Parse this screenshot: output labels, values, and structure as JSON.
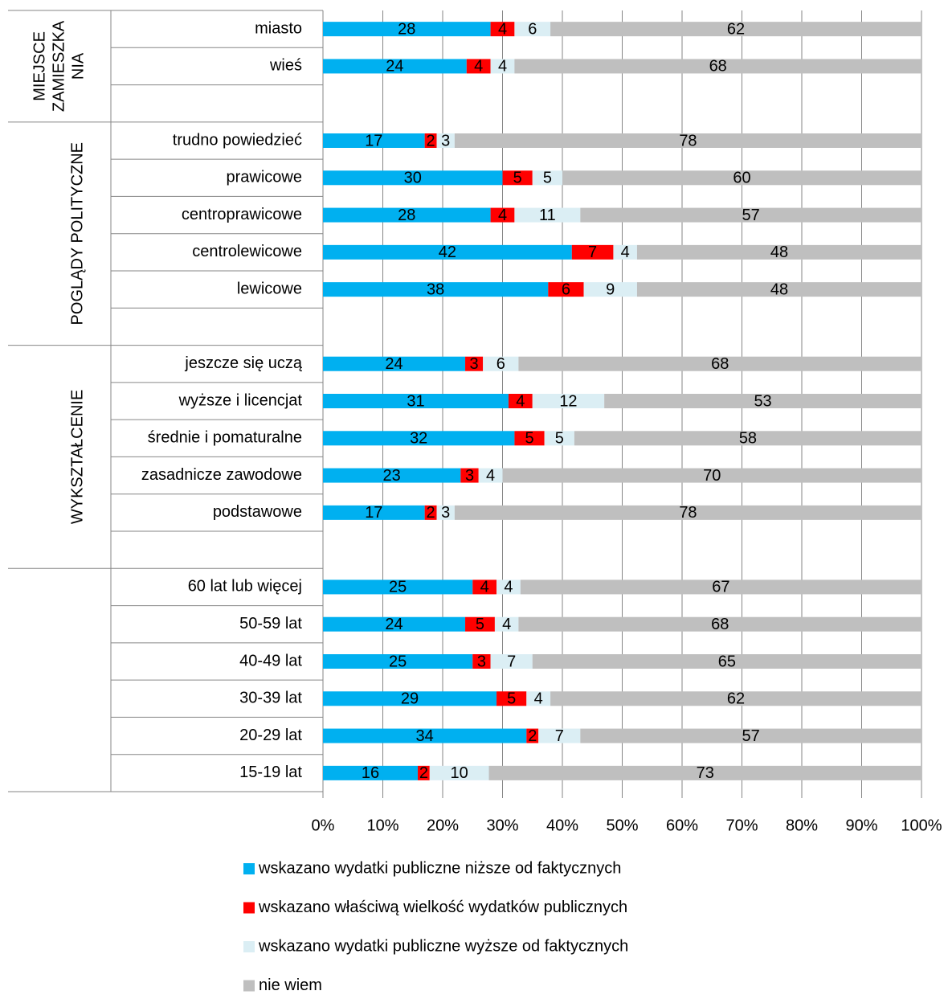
{
  "chart_data": {
    "type": "bar",
    "orientation": "horizontal",
    "stacked": "percent",
    "categories": [
      "miasto",
      "wieś",
      null,
      "trudno powiedzieć",
      "prawicowe",
      "centroprawicowe",
      "centrolewicowe",
      "lewicowe",
      null,
      "jeszcze się uczą",
      "wyższe i licencjat",
      "średnie i pomaturalne",
      "zasadnicze zawodowe",
      "podstawowe",
      null,
      "60 lat lub więcej",
      "50-59 lat",
      "40-49 lat",
      "30-39 lat",
      "20-29 lat",
      "15-19 lat"
    ],
    "groups": [
      {
        "label": [
          "MIEJSCE",
          "ZAMIESZKA",
          "NIA"
        ],
        "rows": 3
      },
      {
        "label": [
          "POGLĄDY POLITYCZNE"
        ],
        "rows": 6
      },
      {
        "label": [
          "WYKSZTAŁCENIE"
        ],
        "rows": 6
      },
      {
        "rows": 6
      }
    ],
    "series": [
      {
        "name": "wskazano wydatki publiczne niższe od faktycznych",
        "color": "#00b0f0",
        "values": [
          28,
          24,
          null,
          17,
          30,
          28,
          42,
          38,
          null,
          24,
          31,
          32,
          23,
          17,
          null,
          25,
          24,
          25,
          29,
          34,
          16
        ]
      },
      {
        "name": "wskazano właściwą wielkość wydatków publicznych",
        "color": "#ff0000",
        "values": [
          4,
          4,
          null,
          2,
          5,
          4,
          7,
          6,
          null,
          3,
          4,
          5,
          3,
          2,
          null,
          4,
          5,
          3,
          5,
          2,
          2
        ]
      },
      {
        "name": "wskazano wydatki publiczne wyższe od faktycznych",
        "color": "#dbeef4",
        "values": [
          6,
          4,
          null,
          3,
          5,
          11,
          4,
          9,
          null,
          6,
          12,
          5,
          4,
          3,
          null,
          4,
          4,
          7,
          4,
          7,
          10
        ]
      },
      {
        "name": "nie wiem",
        "color": "#bfbfbf",
        "values": [
          62,
          68,
          null,
          78,
          60,
          57,
          48,
          48,
          null,
          68,
          53,
          58,
          70,
          78,
          null,
          67,
          68,
          65,
          62,
          57,
          73
        ]
      }
    ],
    "xlim": [
      0,
      100
    ],
    "xticks": [
      {
        "value": 0,
        "label": "0%"
      },
      {
        "value": 10,
        "label": "10%"
      },
      {
        "value": 20,
        "label": "20%"
      },
      {
        "value": 30,
        "label": "30%"
      },
      {
        "value": 40,
        "label": "40%"
      },
      {
        "value": 50,
        "label": "50%"
      },
      {
        "value": 60,
        "label": "60%"
      },
      {
        "value": 70,
        "label": "70%"
      },
      {
        "value": 80,
        "label": "80%"
      },
      {
        "value": 90,
        "label": "90%"
      },
      {
        "value": 100,
        "label": "100%"
      }
    ],
    "grid": true,
    "legend": "bottom"
  }
}
